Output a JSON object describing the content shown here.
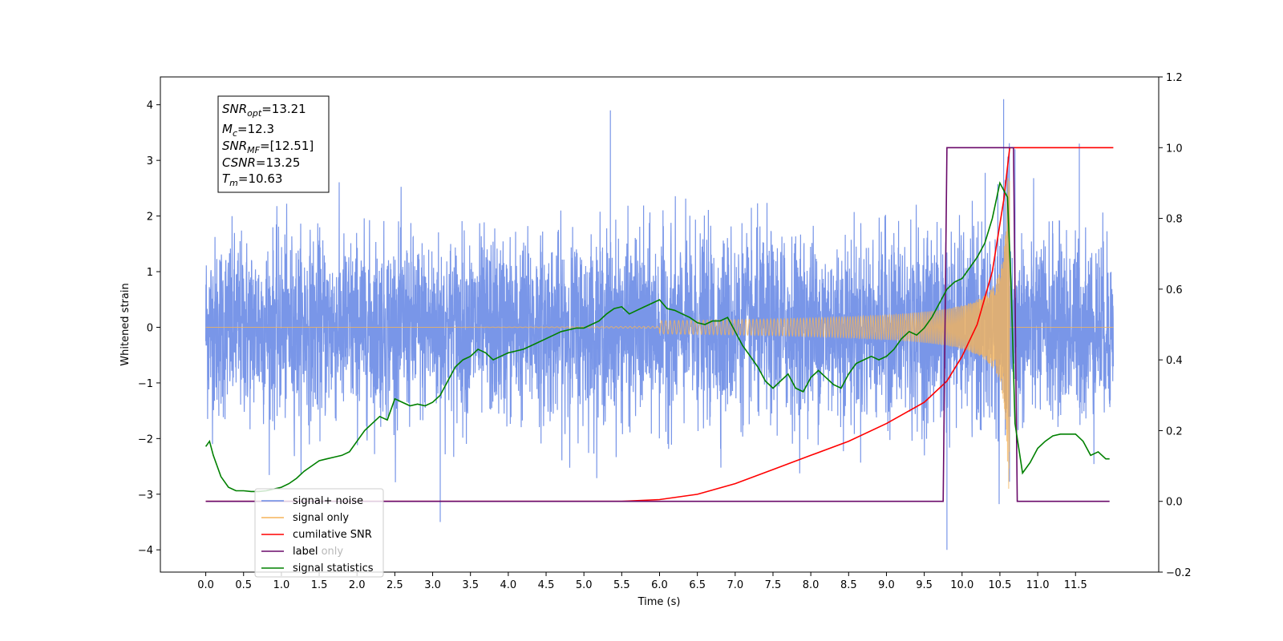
{
  "chart_data": {
    "type": "line",
    "title": "",
    "xlabel": "Time (s)",
    "ylabel": "Whitened strain",
    "ylabel_right": "",
    "xlim": [
      -0.6,
      12.6
    ],
    "ylim": [
      -4.4,
      4.5
    ],
    "ylim_right": [
      -0.2,
      1.2
    ],
    "x_ticks": [
      0.0,
      0.5,
      1.0,
      1.5,
      2.0,
      2.5,
      3.0,
      3.5,
      4.0,
      4.5,
      5.0,
      5.5,
      6.0,
      6.5,
      7.0,
      7.5,
      8.0,
      8.5,
      9.0,
      9.5,
      10.0,
      10.5,
      11.0,
      11.5
    ],
    "x_tick_labels": [
      "0.0",
      "0.5",
      "1.0",
      "1.5",
      "2.0",
      "2.5",
      "3.0",
      "3.5",
      "4.0",
      "4.5",
      "5.0",
      "5.5",
      "6.0",
      "6.5",
      "7.0",
      "7.5",
      "8.0",
      "8.5",
      "9.0",
      "9.5",
      "10.0",
      "10.5",
      "11.0",
      "11.5"
    ],
    "y_ticks_left": [
      -4,
      -3,
      -2,
      -1,
      0,
      1,
      2,
      3,
      4
    ],
    "y_tick_labels_left": [
      "−4",
      "−3",
      "−2",
      "−1",
      "0",
      "1",
      "2",
      "3",
      "4"
    ],
    "y_ticks_right": [
      -0.2,
      0.0,
      0.2,
      0.4,
      0.6,
      0.8,
      1.0,
      1.2
    ],
    "y_tick_labels_right": [
      "−0.2",
      "0.0",
      "0.2",
      "0.4",
      "0.6",
      "0.8",
      "1.0",
      "1.2"
    ],
    "grid": false,
    "legend_placement": "lower-left",
    "stats_box": {
      "snr_opt": {
        "base": "SNR",
        "sub": "opt",
        "value": "=13.21"
      },
      "mc": {
        "base": "M",
        "sub": "c",
        "value": "=12.3"
      },
      "snr_mf": {
        "base": "SNR",
        "sub": "MF",
        "value": "=[12.51]"
      },
      "csnr": {
        "base": "CSNR",
        "sub": "",
        "value": "=13.25"
      },
      "tm": {
        "base": "T",
        "sub": "m",
        "value": "=10.63"
      }
    },
    "series": [
      {
        "name": "signal+ noise",
        "axis": "left",
        "color": "#6a8be6",
        "description_values": {
          "x_start": 0.0,
          "x_end": 12.0,
          "band_typical": [
            -1.6,
            1.6
          ],
          "peaks": [
            [
              5.35,
              3.9
            ],
            [
              10.55,
              4.1
            ],
            [
              9.8,
              -4.0
            ],
            [
              3.1,
              -3.5
            ],
            [
              11.55,
              3.3
            ],
            [
              10.7,
              3.2
            ]
          ]
        }
      },
      {
        "name": "signal only",
        "axis": "left",
        "color": "#f5b45a",
        "description_values": {
          "x_start": 0.0,
          "x_end": 12.0,
          "merger_time": 10.63,
          "max_amplitude": 3.0
        }
      },
      {
        "name": "cumilative SNR",
        "axis": "right",
        "color": "#ff0000",
        "x": [
          0.0,
          5.5,
          6.0,
          6.5,
          7.0,
          7.5,
          8.0,
          8.5,
          9.0,
          9.5,
          9.8,
          10.0,
          10.2,
          10.4,
          10.55,
          10.63,
          12.0
        ],
        "values": [
          0.0,
          0.0,
          0.005,
          0.02,
          0.05,
          0.09,
          0.13,
          0.17,
          0.22,
          0.28,
          0.34,
          0.41,
          0.5,
          0.65,
          0.85,
          1.0,
          1.0
        ]
      },
      {
        "name": "label",
        "axis": "right",
        "color": "#6a0a6a",
        "x": [
          0.0,
          9.75,
          9.8,
          10.68,
          10.73,
          11.95
        ],
        "values": [
          0.0,
          0.0,
          1.0,
          1.0,
          0.0,
          0.0
        ]
      },
      {
        "name": "label only",
        "axis": "right",
        "color": "#6a0a6a",
        "x": [],
        "values": []
      },
      {
        "name": "signal statistics",
        "axis": "right",
        "color": "#008000",
        "x": [
          0.0,
          0.05,
          0.1,
          0.2,
          0.3,
          0.4,
          0.5,
          0.6,
          0.7,
          0.8,
          0.9,
          1.0,
          1.1,
          1.2,
          1.3,
          1.4,
          1.5,
          1.6,
          1.7,
          1.8,
          1.9,
          2.0,
          2.1,
          2.2,
          2.3,
          2.4,
          2.5,
          2.6,
          2.7,
          2.8,
          2.9,
          3.0,
          3.1,
          3.2,
          3.3,
          3.4,
          3.5,
          3.6,
          3.7,
          3.8,
          3.9,
          4.0,
          4.1,
          4.2,
          4.3,
          4.4,
          4.5,
          4.6,
          4.7,
          4.8,
          4.9,
          5.0,
          5.1,
          5.2,
          5.3,
          5.4,
          5.5,
          5.6,
          5.7,
          5.8,
          5.9,
          6.0,
          6.1,
          6.2,
          6.3,
          6.4,
          6.5,
          6.6,
          6.7,
          6.8,
          6.9,
          7.0,
          7.1,
          7.2,
          7.3,
          7.4,
          7.5,
          7.6,
          7.7,
          7.8,
          7.9,
          8.0,
          8.1,
          8.2,
          8.3,
          8.4,
          8.5,
          8.6,
          8.7,
          8.8,
          8.9,
          9.0,
          9.1,
          9.2,
          9.3,
          9.4,
          9.5,
          9.6,
          9.7,
          9.8,
          9.9,
          10.0,
          10.1,
          10.2,
          10.3,
          10.4,
          10.5,
          10.6,
          10.65,
          10.7,
          10.8,
          10.9,
          11.0,
          11.1,
          11.2,
          11.3,
          11.4,
          11.5,
          11.6,
          11.7,
          11.8,
          11.9,
          11.95
        ],
        "values": [
          0.155,
          0.17,
          0.13,
          0.07,
          0.04,
          0.03,
          0.03,
          0.028,
          0.028,
          0.03,
          0.035,
          0.04,
          0.05,
          0.065,
          0.085,
          0.1,
          0.115,
          0.12,
          0.125,
          0.13,
          0.14,
          0.17,
          0.2,
          0.22,
          0.24,
          0.23,
          0.29,
          0.28,
          0.27,
          0.275,
          0.27,
          0.28,
          0.3,
          0.34,
          0.38,
          0.4,
          0.41,
          0.43,
          0.42,
          0.4,
          0.41,
          0.42,
          0.425,
          0.43,
          0.44,
          0.45,
          0.46,
          0.47,
          0.48,
          0.485,
          0.49,
          0.49,
          0.5,
          0.51,
          0.53,
          0.545,
          0.55,
          0.53,
          0.54,
          0.55,
          0.56,
          0.57,
          0.545,
          0.54,
          0.53,
          0.52,
          0.505,
          0.5,
          0.51,
          0.51,
          0.52,
          0.48,
          0.44,
          0.41,
          0.38,
          0.34,
          0.32,
          0.34,
          0.36,
          0.32,
          0.31,
          0.35,
          0.37,
          0.35,
          0.33,
          0.32,
          0.36,
          0.39,
          0.4,
          0.41,
          0.4,
          0.41,
          0.43,
          0.46,
          0.48,
          0.47,
          0.49,
          0.52,
          0.56,
          0.6,
          0.62,
          0.63,
          0.66,
          0.69,
          0.73,
          0.8,
          0.9,
          0.86,
          0.6,
          0.22,
          0.08,
          0.11,
          0.15,
          0.17,
          0.185,
          0.19,
          0.19,
          0.19,
          0.17,
          0.13,
          0.14,
          0.12,
          0.12
        ]
      }
    ]
  }
}
